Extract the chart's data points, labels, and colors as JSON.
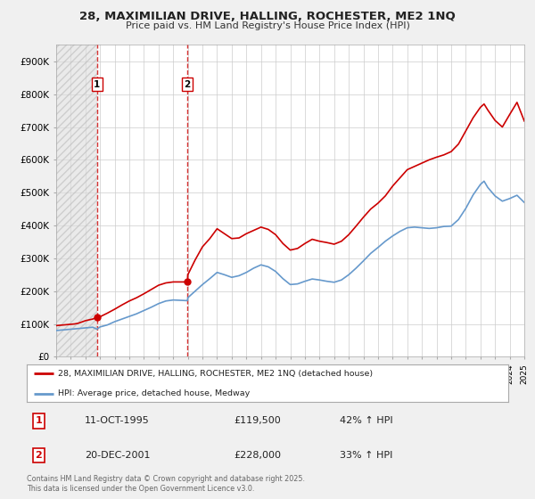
{
  "title": "28, MAXIMILIAN DRIVE, HALLING, ROCHESTER, ME2 1NQ",
  "subtitle": "Price paid vs. HM Land Registry's House Price Index (HPI)",
  "red_line_label": "28, MAXIMILIAN DRIVE, HALLING, ROCHESTER, ME2 1NQ (detached house)",
  "blue_line_label": "HPI: Average price, detached house, Medway",
  "transaction1_date": "11-OCT-1995",
  "transaction1_price": "£119,500",
  "transaction1_hpi": "42% ↑ HPI",
  "transaction2_date": "20-DEC-2001",
  "transaction2_price": "£228,000",
  "transaction2_hpi": "33% ↑ HPI",
  "footer": "Contains HM Land Registry data © Crown copyright and database right 2025.\nThis data is licensed under the Open Government Licence v3.0.",
  "xmin": 1993,
  "xmax": 2025,
  "ymin": 0,
  "ymax": 950000,
  "yticks": [
    0,
    100000,
    200000,
    300000,
    400000,
    500000,
    600000,
    700000,
    800000,
    900000
  ],
  "ytick_labels": [
    "£0",
    "£100K",
    "£200K",
    "£300K",
    "£400K",
    "£500K",
    "£600K",
    "£700K",
    "£800K",
    "£900K"
  ],
  "vline1_x": 1995.79,
  "vline2_x": 2001.97,
  "marker1_red_x": 1995.79,
  "marker1_red_y": 119500,
  "marker2_red_x": 2001.97,
  "marker2_red_y": 228000,
  "background_color": "#f0f0f0",
  "plot_bg_color": "#ffffff",
  "red_color": "#cc0000",
  "blue_color": "#6699cc",
  "vline_color": "#cc0000",
  "hatch_color": "#cccccc",
  "grid_color": "#cccccc",
  "red_line_data_x": [
    1993.0,
    1993.25,
    1993.5,
    1993.75,
    1994.0,
    1994.25,
    1994.5,
    1994.75,
    1995.0,
    1995.5,
    1995.79,
    1996.0,
    1996.5,
    1997.0,
    1997.5,
    1998.0,
    1998.5,
    1999.0,
    1999.5,
    2000.0,
    2000.5,
    2001.0,
    2001.5,
    2001.97,
    2002.0,
    2002.5,
    2003.0,
    2003.5,
    2004.0,
    2004.5,
    2005.0,
    2005.5,
    2006.0,
    2006.5,
    2007.0,
    2007.5,
    2008.0,
    2008.5,
    2009.0,
    2009.5,
    2010.0,
    2010.5,
    2011.0,
    2011.5,
    2012.0,
    2012.5,
    2013.0,
    2013.5,
    2014.0,
    2014.5,
    2015.0,
    2015.5,
    2016.0,
    2016.5,
    2017.0,
    2017.5,
    2018.0,
    2018.5,
    2019.0,
    2019.5,
    2020.0,
    2020.5,
    2021.0,
    2021.5,
    2022.0,
    2022.25,
    2022.5,
    2023.0,
    2023.5,
    2024.0,
    2024.5,
    2025.0
  ],
  "red_line_data_y": [
    95000,
    96000,
    97000,
    98000,
    99000,
    100000,
    102000,
    106000,
    110000,
    115000,
    119500,
    122000,
    133000,
    145000,
    158000,
    170000,
    180000,
    192000,
    205000,
    218000,
    225000,
    228000,
    228000,
    228000,
    250000,
    295000,
    335000,
    360000,
    390000,
    375000,
    360000,
    362000,
    375000,
    385000,
    395000,
    388000,
    372000,
    345000,
    325000,
    330000,
    345000,
    358000,
    352000,
    348000,
    343000,
    352000,
    372000,
    398000,
    425000,
    450000,
    468000,
    490000,
    520000,
    545000,
    570000,
    580000,
    590000,
    600000,
    608000,
    615000,
    625000,
    648000,
    688000,
    728000,
    760000,
    770000,
    752000,
    720000,
    700000,
    738000,
    775000,
    718000
  ],
  "blue_line_data_x": [
    1993.0,
    1993.25,
    1993.5,
    1993.75,
    1994.0,
    1994.25,
    1994.5,
    1994.75,
    1995.0,
    1995.5,
    1995.79,
    1996.0,
    1996.5,
    1997.0,
    1997.5,
    1998.0,
    1998.5,
    1999.0,
    1999.5,
    2000.0,
    2000.5,
    2001.0,
    2001.5,
    2001.97,
    2002.0,
    2002.5,
    2003.0,
    2003.5,
    2004.0,
    2004.5,
    2005.0,
    2005.5,
    2006.0,
    2006.5,
    2007.0,
    2007.5,
    2008.0,
    2008.5,
    2009.0,
    2009.5,
    2010.0,
    2010.5,
    2011.0,
    2011.5,
    2012.0,
    2012.5,
    2013.0,
    2013.5,
    2014.0,
    2014.5,
    2015.0,
    2015.5,
    2016.0,
    2016.5,
    2017.0,
    2017.5,
    2018.0,
    2018.5,
    2019.0,
    2019.5,
    2020.0,
    2020.5,
    2021.0,
    2021.5,
    2022.0,
    2022.25,
    2022.5,
    2023.0,
    2023.5,
    2024.0,
    2024.5,
    2025.0
  ],
  "blue_line_data_y": [
    80000,
    81000,
    82000,
    83000,
    84000,
    85000,
    86000,
    87000,
    88000,
    90000,
    84000,
    91000,
    97000,
    107000,
    115000,
    123000,
    131000,
    141000,
    151000,
    162000,
    170000,
    173000,
    172000,
    171000,
    180000,
    200000,
    220000,
    238000,
    257000,
    250000,
    242000,
    247000,
    257000,
    270000,
    280000,
    274000,
    260000,
    238000,
    220000,
    222000,
    230000,
    237000,
    234000,
    230000,
    227000,
    234000,
    250000,
    270000,
    292000,
    315000,
    333000,
    352000,
    368000,
    382000,
    393000,
    395000,
    393000,
    391000,
    393000,
    397000,
    398000,
    418000,
    452000,
    493000,
    525000,
    535000,
    516000,
    490000,
    474000,
    482000,
    492000,
    470000
  ]
}
